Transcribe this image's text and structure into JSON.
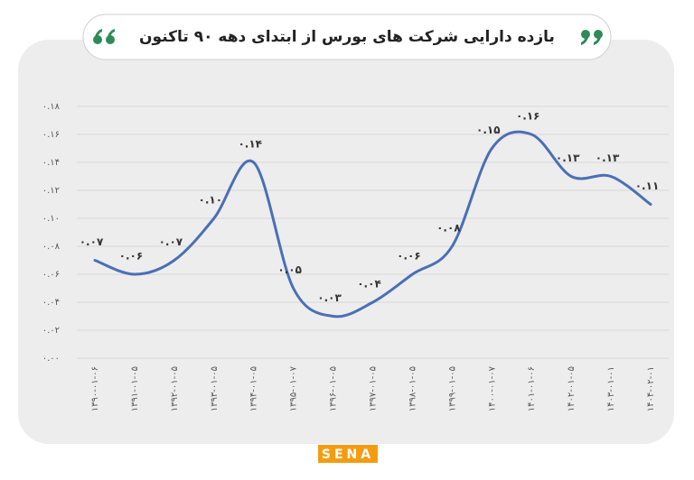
{
  "chart_data": {
    "type": "line",
    "title": "بازده دارایی شرکت های بورس از ابتدای دهه ۹۰ تاکنون",
    "categories": [
      "۱۳۹۰-۰۱-۰۶",
      "۱۳۹۱-۰۱-۰۵",
      "۱۳۹۲-۰۱-۰۵",
      "۱۳۹۳-۰۱-۰۵",
      "۱۳۹۴-۰۱-۰۵",
      "۱۳۹۵-۰۱-۰۷",
      "۱۳۹۶-۰۱-۰۵",
      "۱۳۹۷-۰۱-۰۵",
      "۱۳۹۸-۰۱-۰۵",
      "۱۳۹۹-۰۱-۰۵",
      "۱۴۰۰-۰۱-۰۷",
      "۱۴۰۱-۰۱-۰۶",
      "۱۴۰۲-۰۱-۰۵",
      "۱۴۰۳-۰۱-۰۱",
      "۱۴۰۴-۰۲-۰۱"
    ],
    "values": [
      0.07,
      0.06,
      0.07,
      0.1,
      0.14,
      0.05,
      0.03,
      0.04,
      0.06,
      0.08,
      0.15,
      0.16,
      0.13,
      0.13,
      0.11
    ],
    "value_labels": [
      "۰.۰۷",
      "۰.۰۶",
      "۰.۰۷",
      "۰.۱۰",
      "۰.۱۴",
      "۰.۰۵",
      "۰.۰۳",
      "۰.۰۴",
      "۰.۰۶",
      "۰.۰۸",
      "۰.۱۵",
      "۰.۱۶",
      "۰.۱۳",
      "۰.۱۳",
      "۰.۱۱"
    ],
    "color": "#4a6fb5",
    "ylim": [
      0,
      0.18
    ],
    "yticks": [
      {
        "value": 0,
        "label": "۰.۰۰"
      },
      {
        "value": 0.02,
        "label": "۰.۰۲"
      },
      {
        "value": 0.04,
        "label": "۰.۰۴"
      },
      {
        "value": 0.06,
        "label": "۰.۰۶"
      },
      {
        "value": 0.08,
        "label": "۰.۰۸"
      },
      {
        "value": 0.1,
        "label": "۰.۱۰"
      },
      {
        "value": 0.12,
        "label": "۰.۱۲"
      },
      {
        "value": 0.14,
        "label": "۰.۱۴"
      },
      {
        "value": 0.16,
        "label": "۰.۱۶"
      },
      {
        "value": 0.18,
        "label": "۰.۱۸"
      }
    ],
    "grid": true,
    "logo": "SENA"
  }
}
